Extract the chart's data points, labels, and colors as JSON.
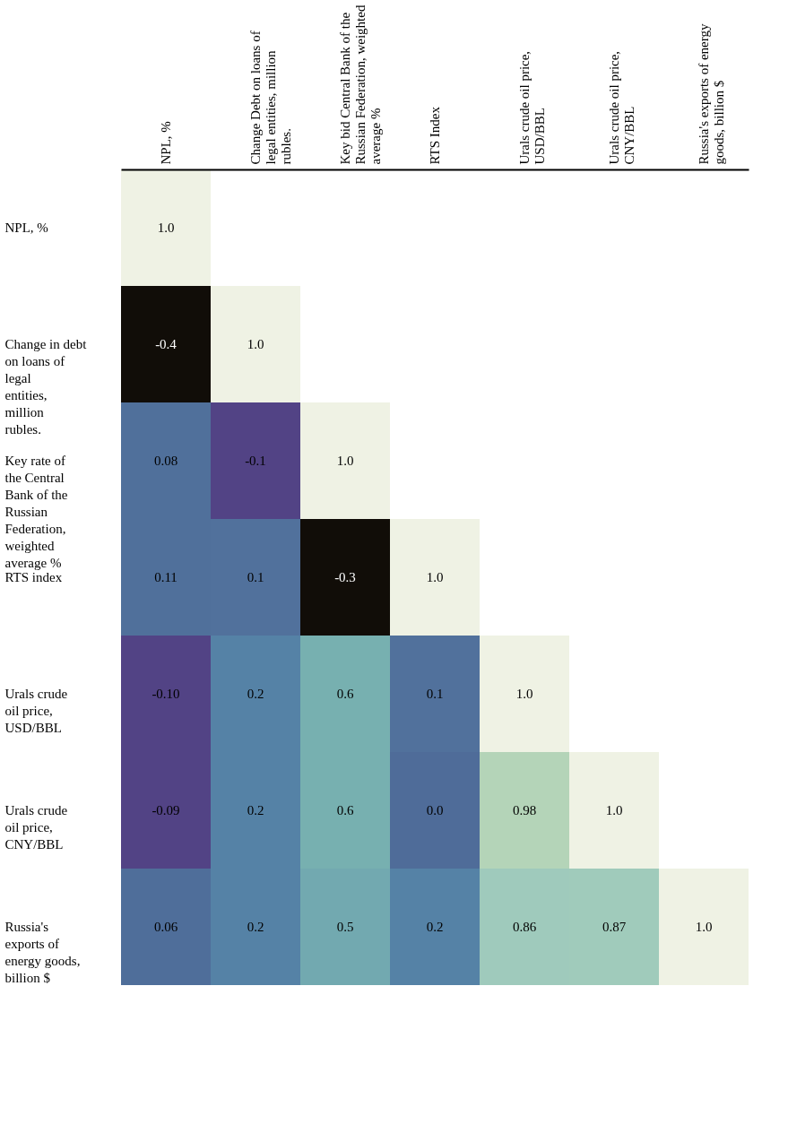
{
  "chart_data": {
    "type": "heatmap",
    "categories": [
      "NPL, %",
      "Change Debt on loans of legal entities, million rubles.",
      "Key bid Central Bank of the Russian Federation, weighted average %",
      "RTS Index",
      "Urals crude oil price, USD/BBL",
      "Urals crude oil price, CNY/BBL",
      "Russia's exports of energy goods, billion $"
    ],
    "y_categories": [
      "NPL, %",
      "Change in debt on loans of legal entities, million rubles.",
      "Key rate of the Central Bank of the Russian Federation, weighted average %",
      "RTS index",
      "Urals crude oil price, USD/BBL",
      "Urals crude oil price, CNY/BBL",
      "Russia's exports of energy goods, billion $"
    ],
    "cells": [
      [
        1.0,
        null,
        null,
        null,
        null,
        null,
        null
      ],
      [
        -0.4,
        1.0,
        null,
        null,
        null,
        null,
        null
      ],
      [
        0.08,
        -0.1,
        1.0,
        null,
        null,
        null,
        null
      ],
      [
        0.11,
        0.1,
        -0.3,
        1.0,
        null,
        null,
        null
      ],
      [
        -0.1,
        0.2,
        0.6,
        0.1,
        1.0,
        null,
        null
      ],
      [
        -0.09,
        0.2,
        0.6,
        0.0,
        0.98,
        1.0,
        null
      ],
      [
        0.06,
        0.2,
        0.5,
        0.2,
        0.86,
        0.87,
        1.0
      ]
    ],
    "cell_labels": [
      [
        "1.0",
        null,
        null,
        null,
        null,
        null,
        null
      ],
      [
        "-0.4",
        "1.0",
        null,
        null,
        null,
        null,
        null
      ],
      [
        "0.08",
        "-0.1",
        "1.0",
        null,
        null,
        null,
        null
      ],
      [
        "0.11",
        "0.1",
        "-0.3",
        "1.0",
        null,
        null,
        null
      ],
      [
        "-0.10",
        "0.2",
        "0.6",
        "0.1",
        "1.0",
        null,
        null
      ],
      [
        "-0.09",
        "0.2",
        "0.6",
        "0.0",
        "0.98",
        "1.0",
        null
      ],
      [
        "0.06",
        "0.2",
        "0.5",
        "0.2",
        "0.86",
        "0.87",
        "1.0"
      ]
    ],
    "colors": [
      [
        "#eff2e4",
        null,
        null,
        null,
        null,
        null,
        null
      ],
      [
        "#110d08",
        "#eff2e4",
        null,
        null,
        null,
        null,
        null
      ],
      [
        "#50709b",
        "#524385",
        "#eff2e4",
        null,
        null,
        null,
        null
      ],
      [
        "#50709b",
        "#51719c",
        "#110d08",
        "#eff2e4",
        null,
        null,
        null
      ],
      [
        "#524385",
        "#5582a6",
        "#77b0b0",
        "#50709b",
        "#eff2e4",
        null,
        null
      ],
      [
        "#524385",
        "#5582a6",
        "#77b0b0",
        "#4f6c99",
        "#b4d4b8",
        "#eff2e4",
        null
      ],
      [
        "#4f6e9a",
        "#5582a6",
        "#72a9b0",
        "#5582a6",
        "#9fcabc",
        "#a0cbbb",
        "#eff2e4"
      ]
    ],
    "data_labels": true
  }
}
